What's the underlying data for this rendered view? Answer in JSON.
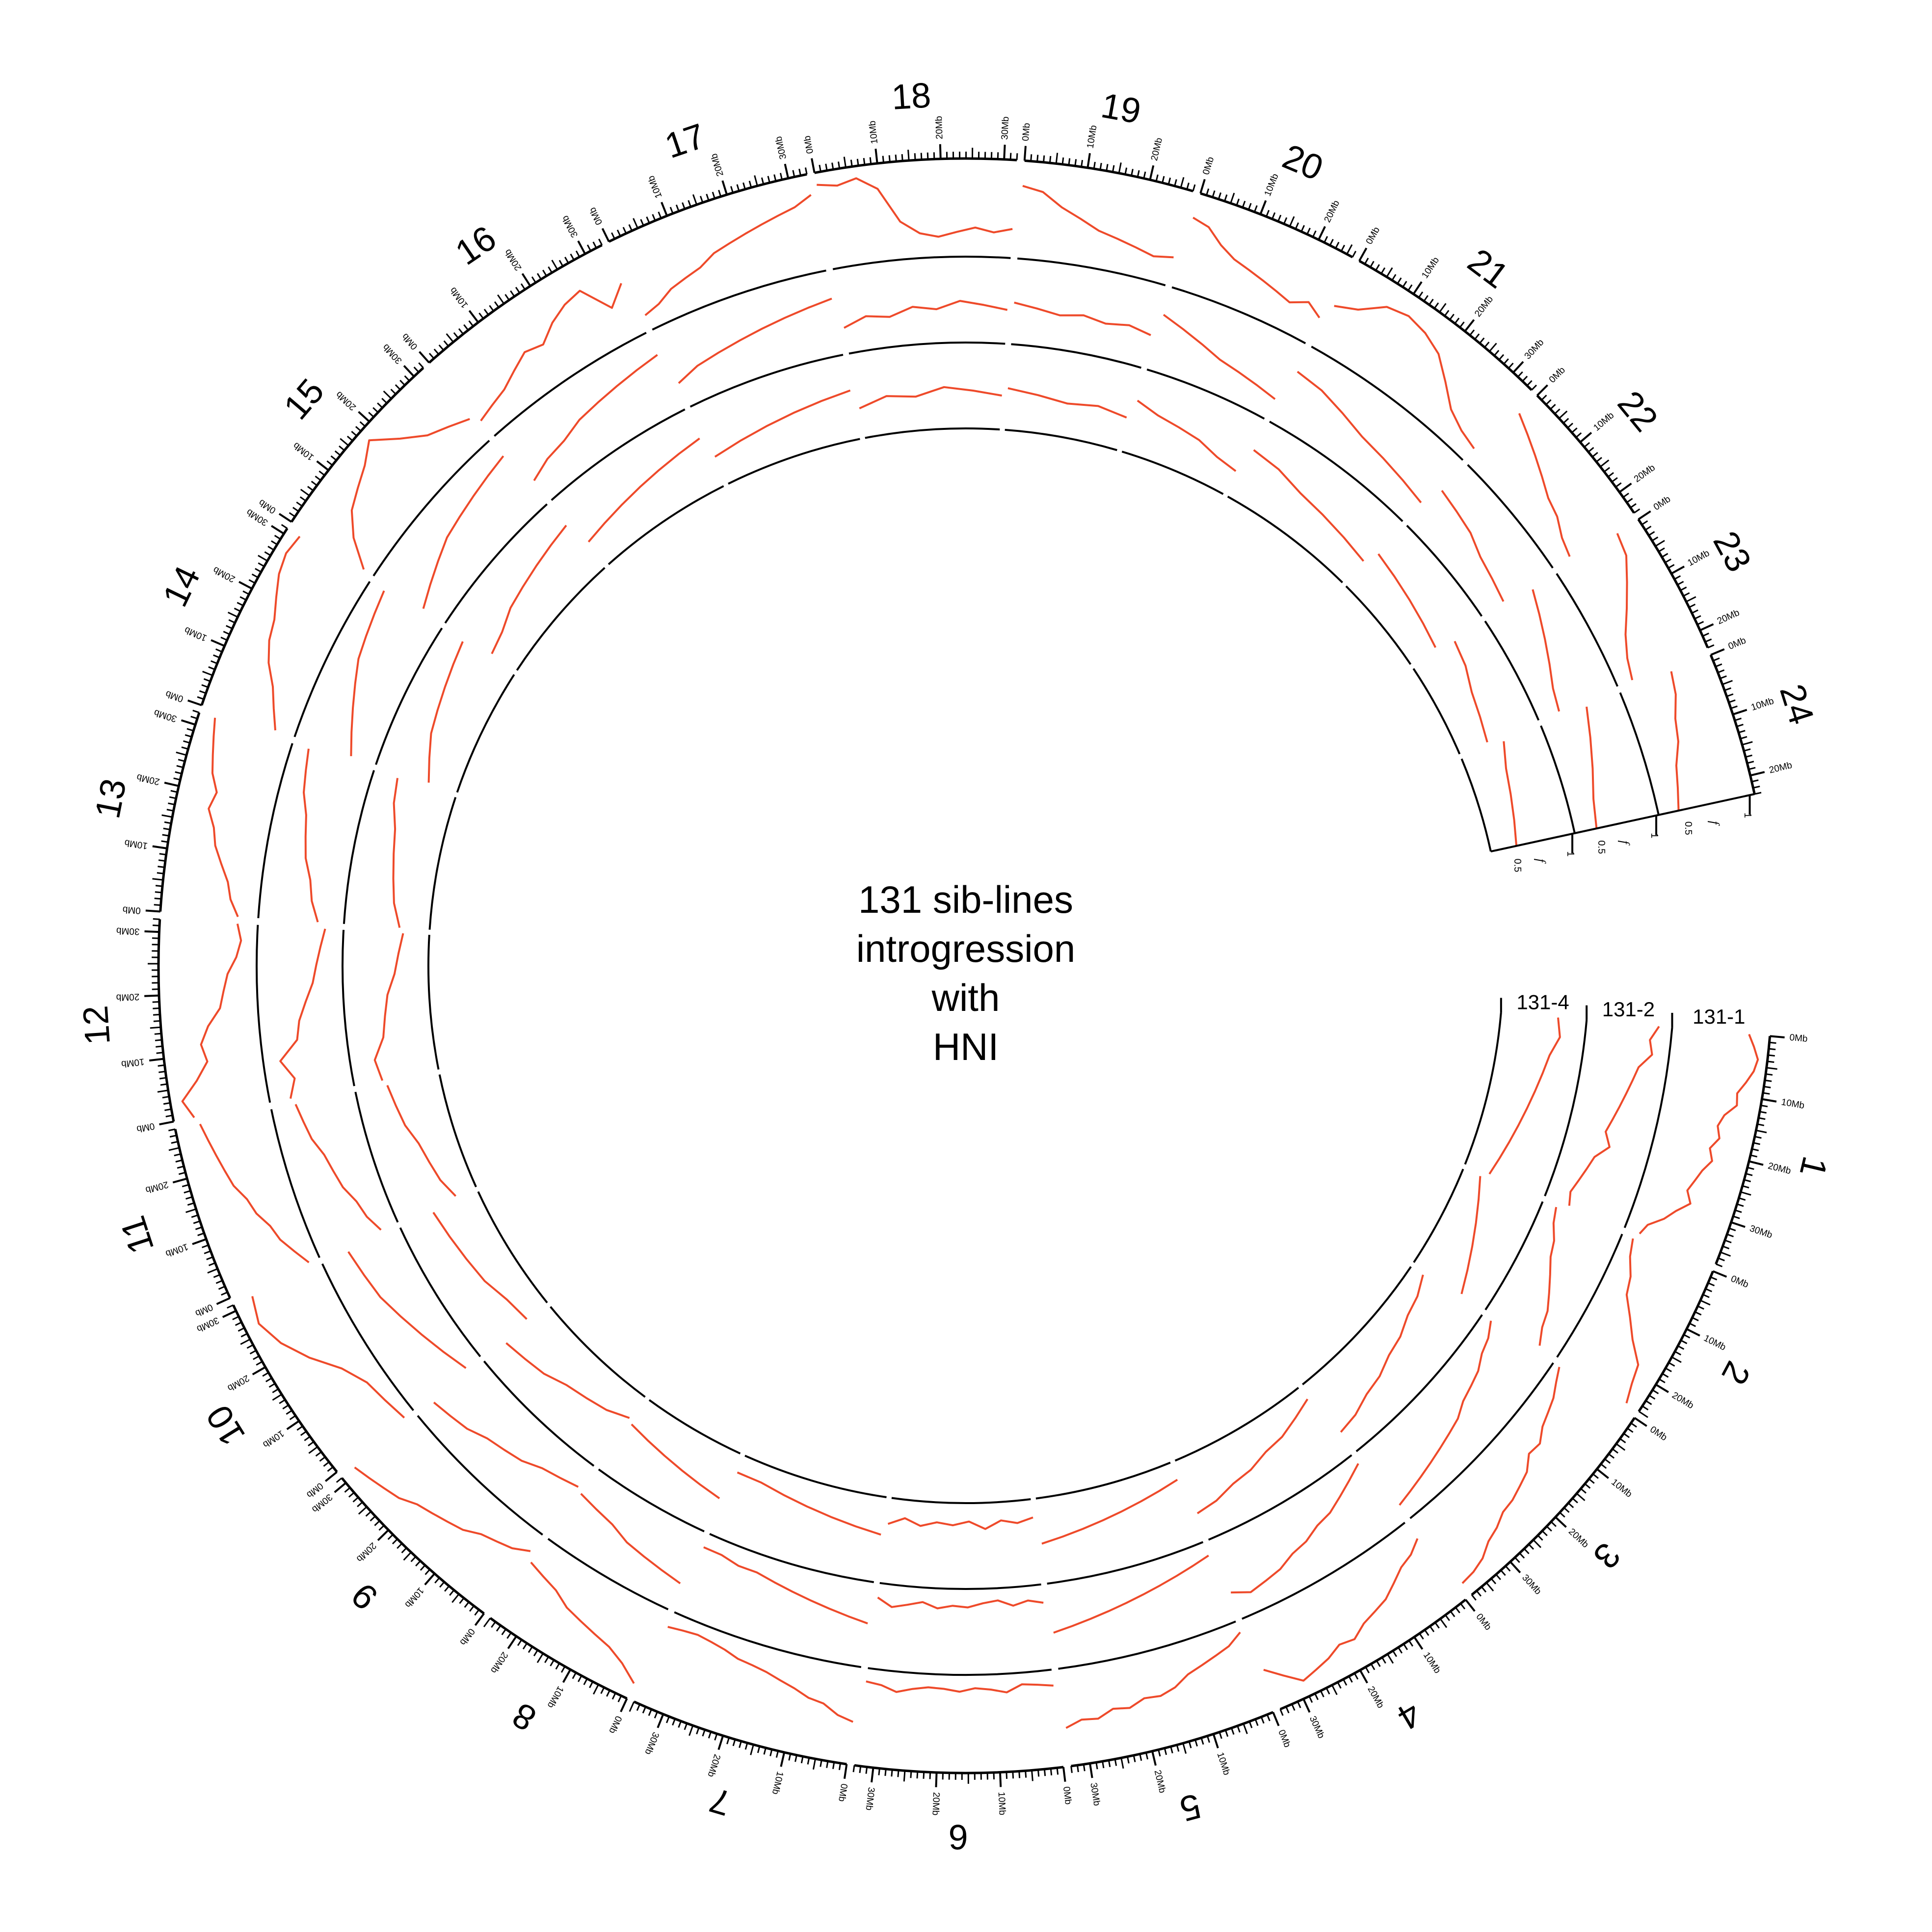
{
  "title_lines": [
    "131 sib-lines",
    "introgression",
    "with",
    "HNI"
  ],
  "chromosomes": [
    {
      "name": "1",
      "length": 37
    },
    {
      "name": "2",
      "length": 25
    },
    {
      "name": "3",
      "length": 38
    },
    {
      "name": "4",
      "length": 34
    },
    {
      "name": "5",
      "length": 33
    },
    {
      "name": "6",
      "length": 33
    },
    {
      "name": "7",
      "length": 35
    },
    {
      "name": "8",
      "length": 25
    },
    {
      "name": "9",
      "length": 31
    },
    {
      "name": "10",
      "length": 31
    },
    {
      "name": "11",
      "length": 28
    },
    {
      "name": "12",
      "length": 32
    },
    {
      "name": "13",
      "length": 32
    },
    {
      "name": "14",
      "length": 31
    },
    {
      "name": "15",
      "length": 32
    },
    {
      "name": "16",
      "length": 33
    },
    {
      "name": "17",
      "length": 33
    },
    {
      "name": "18",
      "length": 32
    },
    {
      "name": "19",
      "length": 27
    },
    {
      "name": "20",
      "length": 26
    },
    {
      "name": "21",
      "length": 34
    },
    {
      "name": "22",
      "length": 24
    },
    {
      "name": "23",
      "length": 23
    },
    {
      "name": "24",
      "length": 23
    }
  ],
  "tracks": [
    {
      "name": "131-1"
    },
    {
      "name": "131-2"
    },
    {
      "name": "131-4"
    }
  ],
  "axis": {
    "symbol": "f",
    "ticks": [
      "0.5",
      "1"
    ]
  },
  "tick_unit": "Mb",
  "colors": {
    "line": "#ee4a2a",
    "axis": "#000000"
  },
  "chart_data": {
    "type": "circular-line",
    "series_by_track": [
      {
        "name": "131-1",
        "profiles": [
          [
            0.85,
            0.92,
            0.98,
            0.95,
            0.88,
            0.8,
            0.82,
            0.7,
            0.65,
            0.7,
            0.62,
            0.68,
            0.6,
            0.55,
            0.5,
            0.58,
            0.45,
            0.35,
            0.2,
            0.15
          ],
          [
            0.1,
            0.15,
            0.25,
            0.3,
            0.45,
            0.6,
            0.8,
            0.85,
            0.92
          ],
          [
            0.05,
            0.12,
            0.2,
            0.25,
            0.3,
            0.4,
            0.38,
            0.5,
            0.55,
            0.6,
            0.62,
            0.7,
            0.75,
            0.85,
            0.9,
            0.92
          ],
          [
            0.2,
            0.3,
            0.35,
            0.45,
            0.55,
            0.6,
            0.65,
            0.75,
            0.72,
            0.8,
            0.85,
            0.9,
            0.75,
            0.6
          ],
          [
            0.1,
            0.2,
            0.25,
            0.3,
            0.35,
            0.45,
            0.5,
            0.48,
            0.55,
            0.52,
            0.6,
            0.58,
            0.65
          ],
          [
            0.15,
            0.12,
            0.1,
            0.18,
            0.14,
            0.12,
            0.16,
            0.13,
            0.12,
            0.15,
            0.2,
            0.14,
            0.12
          ],
          [
            0.6,
            0.55,
            0.45,
            0.42,
            0.35,
            0.3,
            0.25,
            0.22,
            0.2,
            0.15,
            0.12,
            0.1,
            0.12,
            0.15
          ],
          [
            0.9,
            0.75,
            0.65,
            0.6,
            0.55,
            0.5,
            0.4,
            0.35,
            0.3
          ],
          [
            0.2,
            0.3,
            0.35,
            0.4,
            0.5,
            0.55,
            0.6,
            0.65,
            0.75,
            0.8,
            0.85,
            0.9
          ],
          [
            0.1,
            0.15,
            0.2,
            0.35,
            0.6,
            0.8,
            0.92,
            0.85
          ],
          [
            0.1,
            0.2,
            0.3,
            0.35,
            0.45,
            0.5,
            0.6,
            0.65,
            0.7,
            0.75,
            0.8
          ],
          [
            0.85,
            0.95,
            0.75,
            0.6,
            0.65,
            0.55,
            0.4,
            0.35,
            0.3,
            0.2,
            0.15,
            0.2
          ],
          [
            0.2,
            0.3,
            0.35,
            0.45,
            0.55,
            0.6,
            0.7,
            0.65,
            0.75,
            0.8,
            0.85,
            0.9
          ],
          [
            0.2,
            0.3,
            0.4,
            0.55,
            0.65,
            0.7,
            0.8,
            0.9,
            0.95,
            0.92
          ],
          [
            0.1,
            0.4,
            0.6,
            0.7,
            0.8,
            0.95,
            0.7,
            0.5,
            0.4,
            0.3
          ],
          [
            0.2,
            0.25,
            0.3,
            0.4,
            0.5,
            0.45,
            0.6,
            0.7,
            0.75,
            0.4,
            0.6
          ],
          [
            0.15,
            0.2,
            0.3,
            0.35,
            0.4,
            0.5,
            0.55,
            0.6,
            0.65,
            0.7,
            0.75,
            0.85
          ],
          [
            0.95,
            0.9,
            0.95,
            0.8,
            0.4,
            0.25,
            0.2,
            0.25,
            0.3,
            0.25,
            0.3
          ],
          [
            0.8,
            0.75,
            0.6,
            0.5,
            0.4,
            0.35,
            0.3,
            0.25,
            0.3
          ],
          [
            0.8,
            0.75,
            0.6,
            0.5,
            0.45,
            0.4,
            0.35,
            0.3,
            0.4,
            0.3
          ],
          [
            0.5,
            0.6,
            0.8,
            0.85,
            0.8,
            0.7,
            0.5,
            0.3,
            0.2,
            0.15
          ],
          [
            0.8,
            0.7,
            0.6,
            0.5,
            0.4,
            0.35,
            0.25,
            0.2
          ],
          [
            0.8,
            0.75,
            0.6,
            0.45,
            0.3,
            0.2,
            0.15
          ],
          [
            0.6,
            0.55,
            0.45,
            0.4,
            0.3,
            0.25,
            0.2
          ]
        ]
      },
      {
        "name": "131-2",
        "profiles": [
          [
            0.9,
            0.8,
            0.85,
            0.7,
            0.65,
            0.6,
            0.55,
            0.5,
            0.45,
            0.55,
            0.4,
            0.35,
            0.3,
            0.25,
            0.3
          ],
          [
            0.15,
            0.2,
            0.3,
            0.35,
            0.45,
            0.55,
            0.65,
            0.7,
            0.8
          ],
          [
            0.1,
            0.2,
            0.25,
            0.35,
            0.4,
            0.45,
            0.55,
            0.6,
            0.65,
            0.7,
            0.75,
            0.8,
            0.85
          ],
          [
            0.1,
            0.2,
            0.3,
            0.4,
            0.45,
            0.55,
            0.6,
            0.7,
            0.75,
            0.8,
            0.7
          ],
          [
            0.15,
            0.2,
            0.25,
            0.3,
            0.35,
            0.4,
            0.45,
            0.5,
            0.55,
            0.6
          ],
          [
            0.2,
            0.15,
            0.2,
            0.12,
            0.15,
            0.2,
            0.18,
            0.22,
            0.15,
            0.2,
            0.25,
            0.15
          ],
          [
            0.5,
            0.45,
            0.4,
            0.35,
            0.3,
            0.25,
            0.2,
            0.2,
            0.15,
            0.15
          ],
          [
            0.7,
            0.65,
            0.6,
            0.55,
            0.45,
            0.4,
            0.35
          ],
          [
            0.3,
            0.35,
            0.4,
            0.5,
            0.55,
            0.6,
            0.7,
            0.75,
            0.8
          ],
          [
            0.2,
            0.3,
            0.4,
            0.5,
            0.6,
            0.65,
            0.7
          ],
          [
            0.2,
            0.3,
            0.35,
            0.45,
            0.5,
            0.55,
            0.65,
            0.7,
            0.75
          ],
          [
            0.8,
            0.7,
            0.85,
            0.6,
            0.55,
            0.45,
            0.35,
            0.3,
            0.25,
            0.2
          ],
          [
            0.3,
            0.4,
            0.45,
            0.55,
            0.6,
            0.65,
            0.75,
            0.8,
            0.85
          ],
          [
            0.3,
            0.4,
            0.5,
            0.6,
            0.7,
            0.75,
            0.8,
            0.85
          ],
          [
            0.3,
            0.4,
            0.5,
            0.6,
            0.65,
            0.7,
            0.75,
            0.8
          ],
          [
            0.3,
            0.4,
            0.45,
            0.55,
            0.6,
            0.65,
            0.7,
            0.75
          ],
          [
            0.3,
            0.4,
            0.45,
            0.5,
            0.55,
            0.6,
            0.65,
            0.7
          ],
          [
            0.3,
            0.4,
            0.35,
            0.45,
            0.4,
            0.5,
            0.45,
            0.4
          ],
          [
            0.5,
            0.45,
            0.4,
            0.45,
            0.4,
            0.45,
            0.4
          ],
          [
            0.7,
            0.6,
            0.5,
            0.4,
            0.35,
            0.3,
            0.25
          ],
          [
            0.7,
            0.65,
            0.55,
            0.45,
            0.4,
            0.35,
            0.3
          ],
          [
            0.6,
            0.55,
            0.5,
            0.4,
            0.35,
            0.3
          ],
          [
            0.7,
            0.6,
            0.5,
            0.4,
            0.3,
            0.25
          ],
          [
            0.6,
            0.5,
            0.4,
            0.3,
            0.25
          ]
        ]
      },
      {
        "name": "131-4",
        "profiles": [
          [
            0.7,
            0.75,
            0.65,
            0.6,
            0.55,
            0.5,
            0.45,
            0.4,
            0.35,
            0.3
          ],
          [
            0.2,
            0.3,
            0.4,
            0.5,
            0.6,
            0.7
          ],
          [
            0.15,
            0.25,
            0.3,
            0.4,
            0.45,
            0.55,
            0.6,
            0.7,
            0.75
          ],
          [
            0.15,
            0.25,
            0.35,
            0.4,
            0.5,
            0.55,
            0.65,
            0.7
          ],
          [
            0.2,
            0.25,
            0.3,
            0.35,
            0.4,
            0.45,
            0.5,
            0.55
          ],
          [
            0.2,
            0.25,
            0.2,
            0.3,
            0.2,
            0.25,
            0.22,
            0.28,
            0.2,
            0.3
          ],
          [
            0.45,
            0.4,
            0.35,
            0.3,
            0.25,
            0.2,
            0.2
          ],
          [
            0.6,
            0.55,
            0.5,
            0.45,
            0.4,
            0.35
          ],
          [
            0.3,
            0.4,
            0.45,
            0.5,
            0.6,
            0.65,
            0.7
          ],
          [
            0.3,
            0.35,
            0.45,
            0.5,
            0.55,
            0.6
          ],
          [
            0.25,
            0.35,
            0.4,
            0.45,
            0.55,
            0.6,
            0.65
          ],
          [
            0.7,
            0.75,
            0.6,
            0.55,
            0.5,
            0.4,
            0.35,
            0.3
          ],
          [
            0.35,
            0.45,
            0.5,
            0.55,
            0.6,
            0.7,
            0.75
          ],
          [
            0.35,
            0.45,
            0.55,
            0.6,
            0.65,
            0.7,
            0.75
          ],
          [
            0.35,
            0.4,
            0.5,
            0.55,
            0.6,
            0.65,
            0.7
          ],
          [
            0.35,
            0.4,
            0.45,
            0.5,
            0.55,
            0.6,
            0.65
          ],
          [
            0.35,
            0.4,
            0.45,
            0.5,
            0.55,
            0.6
          ],
          [
            0.35,
            0.45,
            0.4,
            0.5,
            0.45,
            0.4
          ],
          [
            0.5,
            0.45,
            0.4,
            0.45,
            0.4
          ],
          [
            0.65,
            0.55,
            0.5,
            0.45,
            0.35,
            0.3
          ],
          [
            0.65,
            0.6,
            0.5,
            0.45,
            0.4,
            0.35
          ],
          [
            0.55,
            0.5,
            0.45,
            0.4,
            0.35
          ],
          [
            0.6,
            0.55,
            0.45,
            0.4,
            0.35
          ],
          [
            0.55,
            0.45,
            0.4,
            0.35,
            0.3
          ]
        ]
      }
    ]
  }
}
